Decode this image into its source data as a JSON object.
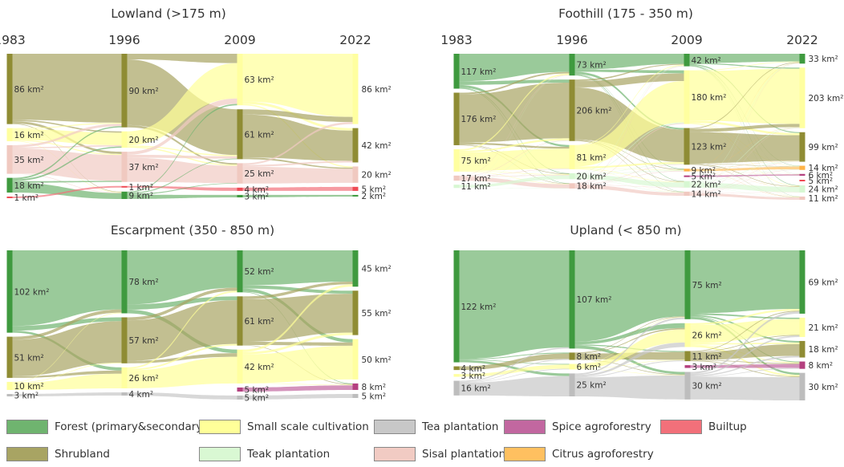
{
  "chart_data": [
    {
      "type": "sankey",
      "title": "Lowland (>175 m)",
      "years": [
        "1983",
        "1996",
        "2009",
        "2022"
      ],
      "nodes": [
        [
          {
            "cat": "shrub",
            "value": 86,
            "label": "86 km²"
          },
          {
            "cat": "small",
            "value": 16,
            "label": "16 km²"
          },
          {
            "cat": "sisal",
            "value": 35,
            "label": "35 km²"
          },
          {
            "cat": "forest",
            "value": 18,
            "label": "18 km²"
          },
          {
            "cat": "builtup",
            "value": 1,
            "label": "1 km²"
          }
        ],
        [
          {
            "cat": "shrub",
            "value": 90,
            "label": "90 km²"
          },
          {
            "cat": "small",
            "value": 20,
            "label": "20 km²"
          },
          {
            "cat": "sisal",
            "value": 37,
            "label": "37 km²"
          },
          {
            "cat": "builtup",
            "value": 1,
            "label": "1 km²"
          },
          {
            "cat": "forest",
            "value": 9,
            "label": "9 km²"
          }
        ],
        [
          {
            "cat": "small",
            "value": 63,
            "label": "63 km²"
          },
          {
            "cat": "shrub",
            "value": 61,
            "label": "61 km²"
          },
          {
            "cat": "sisal",
            "value": 25,
            "label": "25 km²"
          },
          {
            "cat": "builtup",
            "value": 4,
            "label": "4 km²"
          },
          {
            "cat": "forest",
            "value": 3,
            "label": "3 km²"
          }
        ],
        [
          {
            "cat": "small",
            "value": 86,
            "label": "86 km²"
          },
          {
            "cat": "shrub",
            "value": 42,
            "label": "42 km²"
          },
          {
            "cat": "sisal",
            "value": 20,
            "label": "20 km²"
          },
          {
            "cat": "builtup",
            "value": 5,
            "label": "5 km²"
          },
          {
            "cat": "forest",
            "value": 2,
            "label": "2 km²"
          }
        ]
      ]
    },
    {
      "type": "sankey",
      "title": "Foothill (175 - 350 m)",
      "years": [
        "1983",
        "1996",
        "2009",
        "2022"
      ],
      "nodes": [
        [
          {
            "cat": "forest",
            "value": 117,
            "label": "117 km²"
          },
          {
            "cat": "shrub",
            "value": 176,
            "label": "176 km²"
          },
          {
            "cat": "small",
            "value": 75,
            "label": "75 km²"
          },
          {
            "cat": "sisal",
            "value": 17,
            "label": "17 km²"
          },
          {
            "cat": "teak",
            "value": 11,
            "label": "11 km²"
          }
        ],
        [
          {
            "cat": "forest",
            "value": 73,
            "label": "73 km²"
          },
          {
            "cat": "shrub",
            "value": 206,
            "label": "206 km²"
          },
          {
            "cat": "small",
            "value": 81,
            "label": "81 km²"
          },
          {
            "cat": "teak",
            "value": 20,
            "label": "20 km²"
          },
          {
            "cat": "sisal",
            "value": 18,
            "label": "18 km²"
          }
        ],
        [
          {
            "cat": "forest",
            "value": 42,
            "label": "42 km²"
          },
          {
            "cat": "small",
            "value": 180,
            "label": "180 km²"
          },
          {
            "cat": "shrub",
            "value": 123,
            "label": "123 km²"
          },
          {
            "cat": "citrus",
            "value": 9,
            "label": "9 km²"
          },
          {
            "cat": "spice",
            "value": 5,
            "label": "5 km²"
          },
          {
            "cat": "teak",
            "value": 22,
            "label": "22 km²"
          },
          {
            "cat": "sisal",
            "value": 14,
            "label": "14 km²"
          }
        ],
        [
          {
            "cat": "forest",
            "value": 33,
            "label": "33 km²"
          },
          {
            "cat": "small",
            "value": 203,
            "label": "203 km²"
          },
          {
            "cat": "shrub",
            "value": 99,
            "label": "99 km²"
          },
          {
            "cat": "citrus",
            "value": 14,
            "label": "14 km²"
          },
          {
            "cat": "spice",
            "value": 6,
            "label": "6 km²"
          },
          {
            "cat": "builtup",
            "value": 5,
            "label": "5 km²"
          },
          {
            "cat": "teak",
            "value": 24,
            "label": "24 km²"
          },
          {
            "cat": "sisal",
            "value": 11,
            "label": "11 km²"
          }
        ]
      ]
    },
    {
      "type": "sankey",
      "title": "Escarpment (350 - 850 m)",
      "years": [
        "1983",
        "1996",
        "2009",
        "2022"
      ],
      "nodes": [
        [
          {
            "cat": "forest",
            "value": 102,
            "label": "102 km²"
          },
          {
            "cat": "shrub",
            "value": 51,
            "label": "51 km²"
          },
          {
            "cat": "small",
            "value": 10,
            "label": "10 km²"
          },
          {
            "cat": "tea",
            "value": 3,
            "label": "3 km²"
          }
        ],
        [
          {
            "cat": "forest",
            "value": 78,
            "label": "78 km²"
          },
          {
            "cat": "shrub",
            "value": 57,
            "label": "57 km²"
          },
          {
            "cat": "small",
            "value": 26,
            "label": "26 km²"
          },
          {
            "cat": "tea",
            "value": 4,
            "label": "4 km²"
          }
        ],
        [
          {
            "cat": "forest",
            "value": 52,
            "label": "52 km²"
          },
          {
            "cat": "shrub",
            "value": 61,
            "label": "61 km²"
          },
          {
            "cat": "small",
            "value": 42,
            "label": "42 km²"
          },
          {
            "cat": "spice",
            "value": 5,
            "label": "5 km²"
          },
          {
            "cat": "tea",
            "value": 5,
            "label": "5 km²"
          }
        ],
        [
          {
            "cat": "forest",
            "value": 45,
            "label": "45 km²"
          },
          {
            "cat": "shrub",
            "value": 55,
            "label": "55 km²"
          },
          {
            "cat": "small",
            "value": 50,
            "label": "50 km²"
          },
          {
            "cat": "spice",
            "value": 8,
            "label": "8 km²"
          },
          {
            "cat": "tea",
            "value": 5,
            "label": "5 km²"
          }
        ]
      ]
    },
    {
      "type": "sankey",
      "title": "Upland (< 850 m)",
      "years": [],
      "nodes": [
        [
          {
            "cat": "forest",
            "value": 122,
            "label": "122 km²"
          },
          {
            "cat": "shrub",
            "value": 4,
            "label": "4 km²"
          },
          {
            "cat": "small",
            "value": 3,
            "label": "3 km²"
          },
          {
            "cat": "tea",
            "value": 16,
            "label": "16 km²"
          }
        ],
        [
          {
            "cat": "forest",
            "value": 107,
            "label": "107 km²"
          },
          {
            "cat": "shrub",
            "value": 8,
            "label": "8 km²"
          },
          {
            "cat": "small",
            "value": 6,
            "label": "6 km²"
          },
          {
            "cat": "tea",
            "value": 25,
            "label": "25 km²"
          }
        ],
        [
          {
            "cat": "forest",
            "value": 75,
            "label": "75 km²"
          },
          {
            "cat": "small",
            "value": 26,
            "label": "26 km²"
          },
          {
            "cat": "shrub",
            "value": 11,
            "label": "11 km²"
          },
          {
            "cat": "spice",
            "value": 3,
            "label": "3 km²"
          },
          {
            "cat": "tea",
            "value": 30,
            "label": "30 km²"
          }
        ],
        [
          {
            "cat": "forest",
            "value": 69,
            "label": "69 km²"
          },
          {
            "cat": "small",
            "value": 21,
            "label": "21 km²"
          },
          {
            "cat": "shrub",
            "value": 18,
            "label": "18 km²"
          },
          {
            "cat": "spice",
            "value": 8,
            "label": "8 km²"
          },
          {
            "cat": "tea",
            "value": 30,
            "label": "30 km²"
          }
        ]
      ]
    }
  ],
  "legend": [
    {
      "key": "forest",
      "label": "Forest (primary&secondary)"
    },
    {
      "key": "small",
      "label": "Small scale cultivation"
    },
    {
      "key": "tea",
      "label": "Tea plantation"
    },
    {
      "key": "spice",
      "label": "Spice agroforestry"
    },
    {
      "key": "builtup",
      "label": "Builtup"
    },
    {
      "key": "shrub",
      "label": "Shrubland"
    },
    {
      "key": "teak",
      "label": "Teak plantation"
    },
    {
      "key": "sisal",
      "label": "Sisal plantation"
    },
    {
      "key": "citrus",
      "label": "Citrus agroforestry"
    }
  ],
  "colors": {
    "forest": {
      "node": "#3f9a3f",
      "link": "#6fb46f",
      "swatch": "#6fb46f"
    },
    "shrub": {
      "node": "#8f8c34",
      "link": "#a8a463",
      "swatch": "#a8a463"
    },
    "small": {
      "node": "#ffffa0",
      "link": "#ffff99",
      "swatch": "#ffff99"
    },
    "tea": {
      "node": "#bdbdbd",
      "link": "#c8c8c8",
      "swatch": "#c8c8c8"
    },
    "teak": {
      "node": "#d7f7d2",
      "link": "#d9f8d3",
      "swatch": "#d9f8d3"
    },
    "sisal": {
      "node": "#f0c9c0",
      "link": "#f1cbc3",
      "swatch": "#f1cbc3"
    },
    "spice": {
      "node": "#b4407f",
      "link": "#c267a0",
      "swatch": "#c267a0"
    },
    "citrus": {
      "node": "#ffb347",
      "link": "#ffc060",
      "swatch": "#ffc060"
    },
    "builtup": {
      "node": "#ef4b55",
      "link": "#f2707a",
      "swatch": "#f2707a"
    }
  }
}
